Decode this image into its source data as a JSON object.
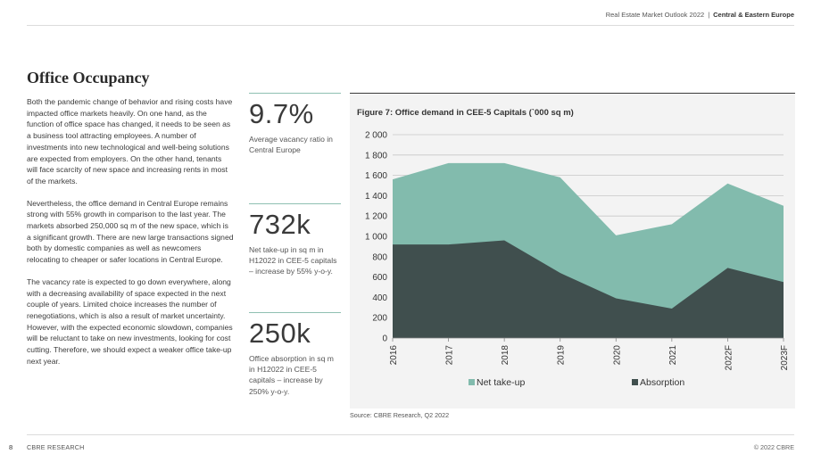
{
  "header": {
    "report": "Real Estate Market Outlook 2022",
    "separator": "|",
    "region": "Central & Eastern Europe"
  },
  "page_title": "Office Occupancy",
  "body": {
    "paragraphs": [
      "Both the pandemic change of behavior and rising costs have impacted office markets heavily. On one hand, as the function of office space has changed, it needs to be seen as a business tool attracting employees. A number of investments into new technological and well-being solutions are expected from employers. On the other hand, tenants will face scarcity of new space and increasing rents in most of the markets.",
      "Nevertheless, the office demand in Central Europe remains strong with 55% growth in comparison to the last year. The markets absorbed 250,000 sq m of the new space, which is a significant growth. There are new large transactions signed both by domestic companies as well as newcomers relocating to cheaper or safer locations in Central Europe.",
      "The vacancy rate is expected to go down everywhere, along with a decreasing availability of space expected in the next couple of years. Limited choice increases the number of renegotiations, which is also a result of market uncertainty. However, with the expected economic slowdown, companies will be reluctant to take on new investments, looking for cost cutting. Therefore, we should expect a weaker office take-up next year."
    ]
  },
  "kpis": [
    {
      "value": "9.7%",
      "description": "Average vacancy ratio in Central Europe"
    },
    {
      "value": "732k",
      "description": "Net take-up in sq m in H12022 in CEE-5 capitals – increase by 55% y-o-y."
    },
    {
      "value": "250k",
      "description": "Office absorption in sq m in H12022 in CEE-5 capitals – increase by 250% y-o-y."
    }
  ],
  "chart_data": {
    "type": "area",
    "title": "Figure 7: Office demand in CEE-5 Capitals (`000 sq m)",
    "categories": [
      "2016",
      "2017",
      "2018",
      "2019",
      "2020",
      "2021",
      "2022F",
      "2023F"
    ],
    "series": [
      {
        "name": "Net take-up",
        "color": "#82bbad",
        "values": [
          1560,
          1720,
          1720,
          1580,
          1010,
          1120,
          1520,
          1300
        ]
      },
      {
        "name": "Absorption",
        "color": "#404f4e",
        "values": [
          920,
          920,
          960,
          640,
          390,
          290,
          690,
          550
        ]
      }
    ],
    "ylim": [
      0,
      2000
    ],
    "yticks": [
      0,
      200,
      400,
      600,
      800,
      1000,
      1200,
      1400,
      1600,
      1800,
      2000
    ],
    "ytick_labels": [
      "0",
      "200",
      "400",
      "600",
      "800",
      "1 000",
      "1 200",
      "1 400",
      "1 600",
      "1 800",
      "2 000"
    ],
    "grid": true,
    "legend_position": "bottom"
  },
  "source": "Source: CBRE Research, Q2 2022",
  "footer": {
    "page_number": "8",
    "left": "CBRE RESEARCH",
    "right": "© 2022 CBRE"
  }
}
